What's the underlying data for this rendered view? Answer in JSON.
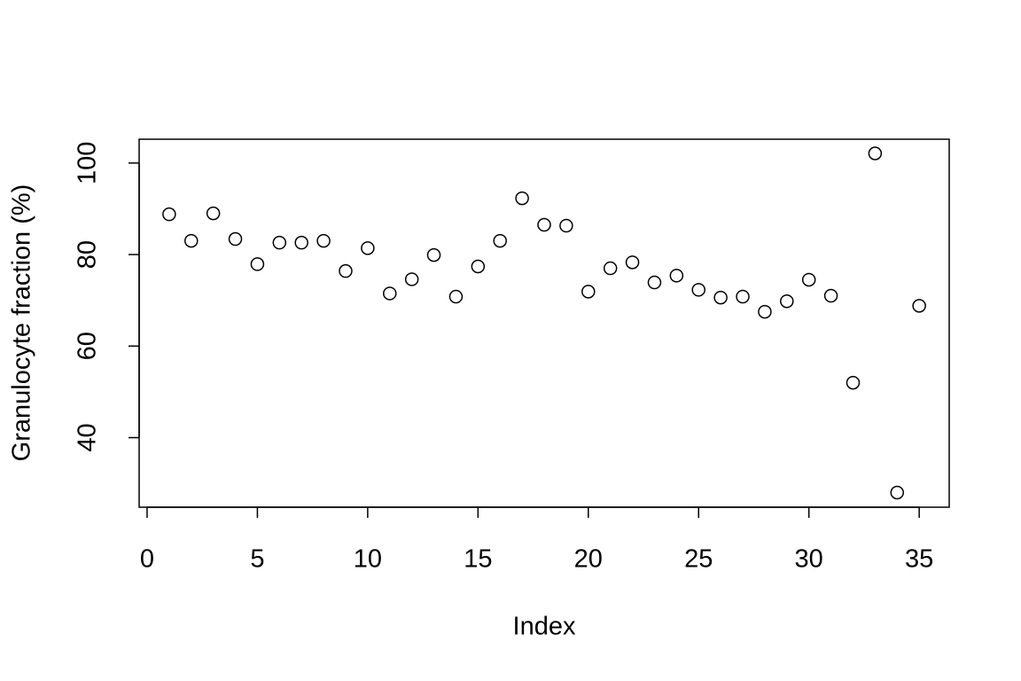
{
  "chart_data": {
    "type": "scatter",
    "x_label": "Index",
    "y_label": "Granulocyte fraction (%)",
    "x": [
      1,
      2,
      3,
      4,
      5,
      6,
      7,
      8,
      9,
      10,
      11,
      12,
      13,
      14,
      15,
      16,
      17,
      18,
      19,
      20,
      21,
      22,
      23,
      24,
      25,
      26,
      27,
      28,
      29,
      30,
      31,
      32,
      33,
      34,
      35
    ],
    "values": [
      88.8,
      83.0,
      89.0,
      83.4,
      77.9,
      82.6,
      82.6,
      83.0,
      76.4,
      81.4,
      71.5,
      74.6,
      79.9,
      70.8,
      77.4,
      83.0,
      92.3,
      86.5,
      86.3,
      71.9,
      77.0,
      78.3,
      73.9,
      75.4,
      72.3,
      70.6,
      70.8,
      67.5,
      69.8,
      74.5,
      71.0,
      52.0,
      102.1,
      28.0,
      68.8
    ],
    "color": "#000000",
    "xlim": [
      -0.36,
      36.36
    ],
    "xticks": [
      0,
      5,
      10,
      15,
      20,
      25,
      30,
      35
    ],
    "ylim": [
      24.8,
      105.2
    ],
    "yticks": [
      40,
      60,
      80,
      100
    ],
    "grid": false
  }
}
